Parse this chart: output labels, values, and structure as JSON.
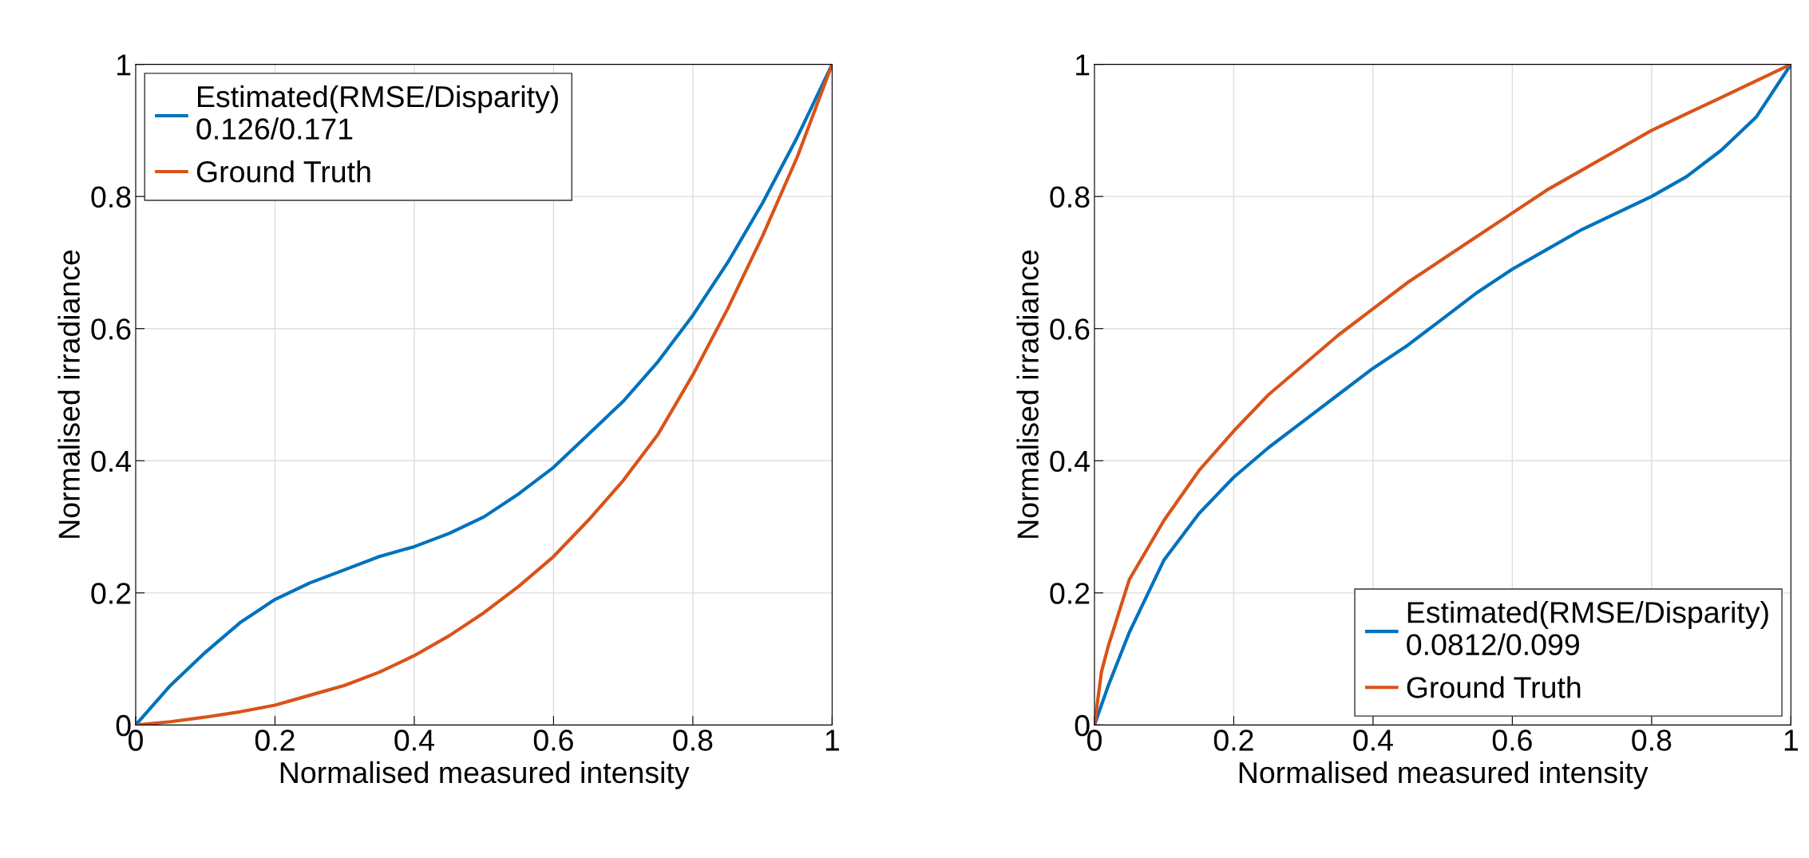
{
  "chart_data": [
    {
      "type": "line",
      "xlabel": "Normalised measured intensity",
      "ylabel": "Normalised irradiance",
      "xlim": [
        0,
        1
      ],
      "ylim": [
        0,
        1
      ],
      "xticks": [
        0,
        0.2,
        0.4,
        0.6,
        0.8,
        1
      ],
      "yticks": [
        0,
        0.2,
        0.4,
        0.6,
        0.8,
        1
      ],
      "grid": true,
      "legend": "top left",
      "series": [
        {
          "name": "Estimated(RMSE/Disparity)\n0.126/0.171",
          "color": "#0072bd",
          "x": [
            0,
            0.05,
            0.1,
            0.15,
            0.2,
            0.25,
            0.3,
            0.35,
            0.4,
            0.45,
            0.5,
            0.55,
            0.6,
            0.65,
            0.7,
            0.75,
            0.8,
            0.85,
            0.9,
            0.95,
            1
          ],
          "values": [
            0,
            0.06,
            0.11,
            0.155,
            0.19,
            0.215,
            0.235,
            0.255,
            0.27,
            0.29,
            0.315,
            0.35,
            0.39,
            0.44,
            0.49,
            0.55,
            0.62,
            0.7,
            0.79,
            0.89,
            1
          ]
        },
        {
          "name": "Ground Truth",
          "color": "#d95319",
          "x": [
            0,
            0.05,
            0.1,
            0.15,
            0.2,
            0.25,
            0.3,
            0.35,
            0.4,
            0.45,
            0.5,
            0.55,
            0.6,
            0.65,
            0.7,
            0.75,
            0.8,
            0.85,
            0.9,
            0.95,
            1
          ],
          "values": [
            0,
            0.005,
            0.012,
            0.02,
            0.03,
            0.045,
            0.06,
            0.08,
            0.105,
            0.135,
            0.17,
            0.21,
            0.255,
            0.31,
            0.37,
            0.44,
            0.53,
            0.63,
            0.74,
            0.86,
            1
          ]
        }
      ]
    },
    {
      "type": "line",
      "xlabel": "Normalised measured intensity",
      "ylabel": "Normalised irradiance",
      "xlim": [
        0,
        1
      ],
      "ylim": [
        0,
        1
      ],
      "xticks": [
        0,
        0.2,
        0.4,
        0.6,
        0.8,
        1
      ],
      "yticks": [
        0,
        0.2,
        0.4,
        0.6,
        0.8,
        1
      ],
      "grid": true,
      "legend": "bottom right",
      "series": [
        {
          "name": "Estimated(RMSE/Disparity)\n0.0812/0.099",
          "color": "#0072bd",
          "x": [
            0,
            0.02,
            0.05,
            0.1,
            0.15,
            0.2,
            0.25,
            0.3,
            0.35,
            0.4,
            0.45,
            0.5,
            0.55,
            0.6,
            0.65,
            0.7,
            0.75,
            0.8,
            0.85,
            0.9,
            0.95,
            1
          ],
          "values": [
            0,
            0.06,
            0.14,
            0.25,
            0.32,
            0.375,
            0.42,
            0.46,
            0.5,
            0.54,
            0.575,
            0.615,
            0.655,
            0.69,
            0.72,
            0.75,
            0.775,
            0.8,
            0.83,
            0.87,
            0.92,
            1
          ]
        },
        {
          "name": "Ground Truth",
          "color": "#d95319",
          "x": [
            0,
            0.01,
            0.02,
            0.05,
            0.1,
            0.15,
            0.2,
            0.25,
            0.3,
            0.35,
            0.4,
            0.45,
            0.5,
            0.55,
            0.6,
            0.65,
            0.7,
            0.75,
            0.8,
            0.85,
            0.9,
            0.95,
            1
          ],
          "values": [
            0,
            0.08,
            0.12,
            0.22,
            0.31,
            0.385,
            0.445,
            0.5,
            0.545,
            0.59,
            0.63,
            0.67,
            0.705,
            0.74,
            0.775,
            0.81,
            0.84,
            0.87,
            0.9,
            0.925,
            0.95,
            0.975,
            1
          ]
        }
      ]
    }
  ]
}
